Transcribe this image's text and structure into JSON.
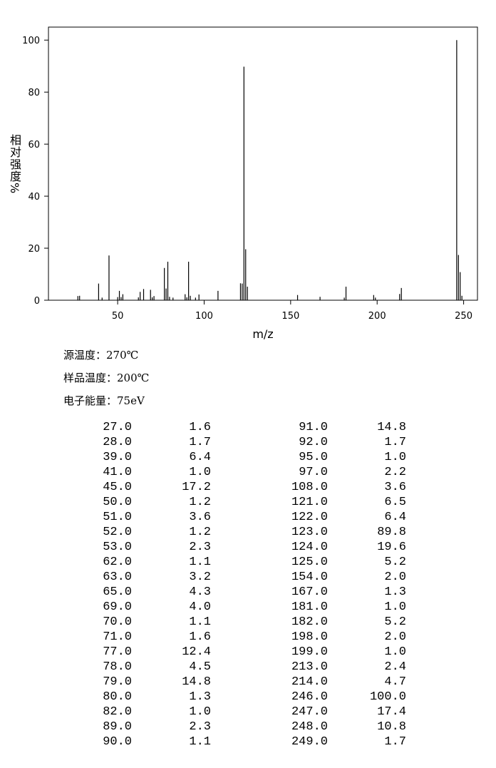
{
  "chart_data": {
    "type": "bar",
    "x_label": "m/z",
    "y_label": "相对强度%",
    "x": [
      27,
      28,
      39,
      41,
      45,
      50,
      51,
      52,
      53,
      62,
      63,
      65,
      69,
      70,
      71,
      77,
      78,
      79,
      80,
      82,
      89,
      90,
      91,
      92,
      95,
      97,
      108,
      121,
      122,
      123,
      124,
      125,
      154,
      167,
      181,
      182,
      198,
      199,
      213,
      214,
      246,
      247,
      248,
      249
    ],
    "values": [
      1.6,
      1.7,
      6.4,
      1.0,
      17.2,
      1.2,
      3.6,
      1.2,
      2.3,
      1.1,
      3.2,
      4.3,
      4.0,
      1.1,
      1.6,
      12.4,
      4.5,
      14.8,
      1.3,
      1.0,
      2.3,
      1.1,
      14.8,
      1.7,
      1.0,
      2.2,
      3.6,
      6.5,
      6.4,
      89.8,
      19.6,
      5.2,
      2.0,
      1.3,
      1.0,
      5.2,
      2.0,
      1.0,
      2.4,
      4.7,
      100.0,
      17.4,
      10.8,
      1.7
    ],
    "color": "#000000",
    "xlim": [
      10,
      258
    ],
    "xticks": [
      50,
      100,
      150,
      200,
      250
    ],
    "ylim": [
      0,
      105
    ],
    "yticks": [
      0,
      20,
      40,
      60,
      80,
      100
    ]
  },
  "conditions": [
    "源温度：270℃",
    "样品温度：200℃",
    "电子能量：75eV"
  ],
  "table": {
    "rows": [
      [
        "27.0",
        "1.6",
        "91.0",
        "14.8"
      ],
      [
        "28.0",
        "1.7",
        "92.0",
        "1.7"
      ],
      [
        "39.0",
        "6.4",
        "95.0",
        "1.0"
      ],
      [
        "41.0",
        "1.0",
        "97.0",
        "2.2"
      ],
      [
        "45.0",
        "17.2",
        "108.0",
        "3.6"
      ],
      [
        "50.0",
        "1.2",
        "121.0",
        "6.5"
      ],
      [
        "51.0",
        "3.6",
        "122.0",
        "6.4"
      ],
      [
        "52.0",
        "1.2",
        "123.0",
        "89.8"
      ],
      [
        "53.0",
        "2.3",
        "124.0",
        "19.6"
      ],
      [
        "62.0",
        "1.1",
        "125.0",
        "5.2"
      ],
      [
        "63.0",
        "3.2",
        "154.0",
        "2.0"
      ],
      [
        "65.0",
        "4.3",
        "167.0",
        "1.3"
      ],
      [
        "69.0",
        "4.0",
        "181.0",
        "1.0"
      ],
      [
        "70.0",
        "1.1",
        "182.0",
        "5.2"
      ],
      [
        "71.0",
        "1.6",
        "198.0",
        "2.0"
      ],
      [
        "77.0",
        "12.4",
        "199.0",
        "1.0"
      ],
      [
        "78.0",
        "4.5",
        "213.0",
        "2.4"
      ],
      [
        "79.0",
        "14.8",
        "214.0",
        "4.7"
      ],
      [
        "80.0",
        "1.3",
        "246.0",
        "100.0"
      ],
      [
        "82.0",
        "1.0",
        "247.0",
        "17.4"
      ],
      [
        "89.0",
        "2.3",
        "248.0",
        "10.8"
      ],
      [
        "90.0",
        "1.1",
        "249.0",
        "1.7"
      ]
    ]
  }
}
